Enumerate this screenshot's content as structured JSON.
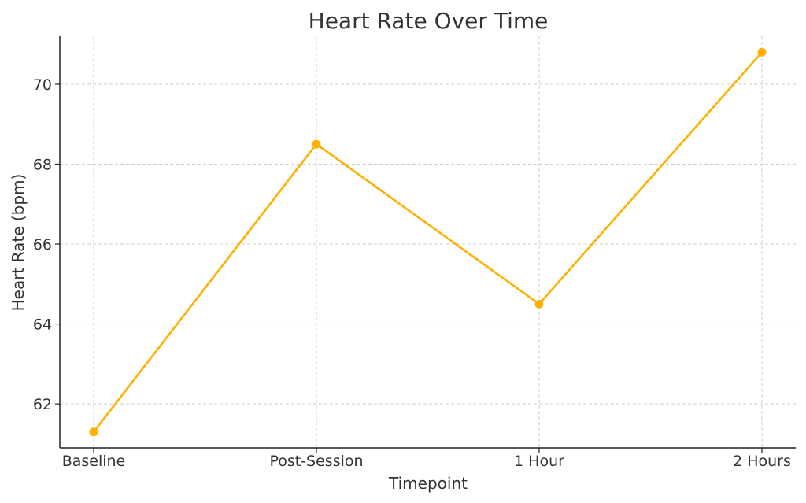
{
  "chart_data": {
    "type": "line",
    "title": "Heart Rate Over Time",
    "xlabel": "Timepoint",
    "ylabel": "Heart Rate (bpm)",
    "categories": [
      "Baseline",
      "Post-Session",
      "1 Hour",
      "2 Hours"
    ],
    "series": [
      {
        "values": [
          61.3,
          68.5,
          64.5,
          70.8
        ],
        "color": "#FFB000"
      }
    ],
    "ylim": [
      60.9,
      71.2
    ],
    "yticks": [
      62,
      64,
      66,
      68,
      70
    ],
    "grid": true,
    "marker": "circle"
  }
}
